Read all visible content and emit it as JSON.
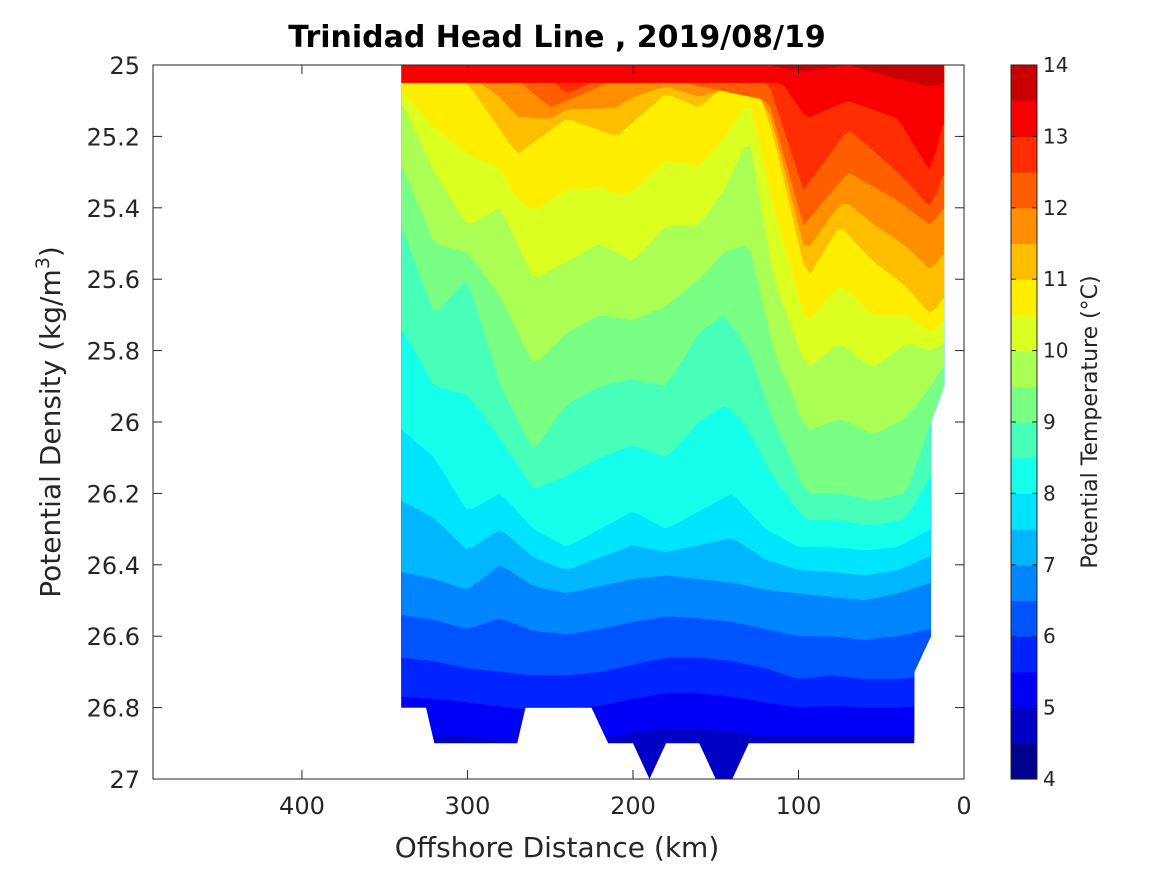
{
  "chart_data": {
    "type": "heatmap",
    "title": "Trinidad Head Line , 2019/08/19",
    "xlabel": "Offshore Distance (km)",
    "ylabel_main": "Potential Density (kg/m",
    "ylabel_sup": "3",
    "ylabel_close": ")",
    "colorbar_label": "Potential Temperature (°C)",
    "x_reversed": true,
    "xlim": [
      490,
      0
    ],
    "ylim": [
      25,
      27
    ],
    "y_reversed": true,
    "x_ticks": [
      "400",
      "300",
      "200",
      "100",
      "0"
    ],
    "x_tick_values": [
      400,
      300,
      200,
      100,
      0
    ],
    "y_ticks": [
      "25",
      "25.2",
      "25.4",
      "25.6",
      "25.8",
      "26",
      "26.2",
      "26.4",
      "26.6",
      "26.8",
      "27"
    ],
    "y_tick_values": [
      25,
      25.2,
      25.4,
      25.6,
      25.8,
      26,
      26.2,
      26.4,
      26.6,
      26.8,
      27
    ],
    "colorbar_ticks": [
      "14",
      "13",
      "12",
      "11",
      "10",
      "9",
      "8",
      "7",
      "6",
      "5",
      "4"
    ],
    "colorbar_tick_values": [
      14,
      13,
      12,
      11,
      10,
      9,
      8,
      7,
      6,
      5,
      4
    ],
    "color_levels": [
      4,
      4.5,
      5,
      5.5,
      6,
      6.5,
      7,
      7.5,
      8,
      8.5,
      9,
      9.5,
      10,
      10.5,
      11,
      11.5,
      12,
      12.5,
      13,
      13.5,
      14
    ],
    "colormap": [
      "#00008f",
      "#0000c4",
      "#0000f5",
      "#0024ff",
      "#0054ff",
      "#0085ff",
      "#00b6ff",
      "#00e4ff",
      "#15ffea",
      "#47ffb8",
      "#7aff85",
      "#abff54",
      "#dcff22",
      "#ffee00",
      "#ffbf00",
      "#ff8e00",
      "#ff5e00",
      "#ff2d00",
      "#f90000",
      "#c80000"
    ],
    "data_domain": "x from 340 km to 12 km offshore; sigma-theta from 25.0 to ~26.9 kg/m3",
    "temperature_level_surfaces": [
      {
        "level": 13.5,
        "x": [
          240,
          200,
          120,
          95,
          70,
          40,
          20,
          12
        ],
        "y": [
          25.0,
          25.0,
          25.0,
          25.02,
          25.0,
          25.04,
          25.06,
          25.05
        ]
      },
      {
        "level": 13.0,
        "x": [
          110,
          95,
          70,
          40,
          20,
          12
        ],
        "y": [
          25.05,
          25.15,
          25.1,
          25.15,
          25.3,
          25.15
        ]
      },
      {
        "level": 12.5,
        "x": [
          260,
          240,
          200,
          118,
          97,
          70,
          40,
          20,
          12
        ],
        "y": [
          25.0,
          25.08,
          25.0,
          25.05,
          25.35,
          25.18,
          25.3,
          25.4,
          25.3
        ]
      },
      {
        "level": 12.0,
        "x": [
          280,
          250,
          200,
          118,
          97,
          70,
          40,
          20,
          12
        ],
        "y": [
          25.0,
          25.12,
          25.02,
          25.1,
          25.45,
          25.3,
          25.38,
          25.45,
          25.4
        ]
      },
      {
        "level": 11.0,
        "x": [
          300,
          270,
          240,
          210,
          180,
          160,
          130,
          115,
          95,
          75,
          55,
          35,
          20,
          12
        ],
        "y": [
          25.05,
          25.25,
          25.15,
          25.2,
          25.08,
          25.12,
          25.0,
          25.2,
          25.6,
          25.45,
          25.55,
          25.62,
          25.7,
          25.65
        ]
      },
      {
        "level": 10.0,
        "x": [
          340,
          320,
          300,
          280,
          260,
          240,
          220,
          200,
          180,
          160,
          145,
          130,
          115,
          95,
          75,
          55,
          35,
          20,
          12
        ],
        "y": [
          25.1,
          25.3,
          25.45,
          25.4,
          25.6,
          25.55,
          25.5,
          25.55,
          25.45,
          25.45,
          25.35,
          25.2,
          25.6,
          25.85,
          25.78,
          25.85,
          25.78,
          25.8,
          25.78
        ]
      },
      {
        "level": 9.0,
        "x": [
          340,
          320,
          300,
          280,
          260,
          240,
          220,
          200,
          180,
          160,
          145,
          130,
          115,
          95,
          75,
          55,
          35,
          20,
          12
        ],
        "y": [
          25.45,
          25.7,
          25.6,
          25.9,
          26.08,
          25.95,
          25.9,
          25.88,
          25.9,
          25.75,
          25.7,
          25.8,
          26.0,
          26.2,
          26.2,
          26.22,
          26.2,
          26.0,
          25.9
        ]
      },
      {
        "level": 8.0,
        "x": [
          340,
          320,
          300,
          280,
          260,
          240,
          220,
          200,
          180,
          160,
          140,
          120,
          100,
          80,
          60,
          40,
          20
        ],
        "y": [
          26.02,
          26.1,
          26.25,
          26.2,
          26.3,
          26.35,
          26.3,
          26.25,
          26.3,
          26.25,
          26.2,
          26.3,
          26.35,
          26.35,
          26.36,
          26.35,
          26.3
        ]
      },
      {
        "level": 7.0,
        "x": [
          340,
          320,
          300,
          280,
          260,
          240,
          220,
          200,
          180,
          160,
          140,
          120,
          100,
          80,
          60,
          40,
          20
        ],
        "y": [
          26.42,
          26.44,
          26.47,
          26.4,
          26.46,
          26.48,
          26.46,
          26.44,
          26.43,
          26.44,
          26.45,
          26.47,
          26.48,
          26.49,
          26.5,
          26.48,
          26.45
        ]
      },
      {
        "level": 6.0,
        "x": [
          340,
          320,
          300,
          280,
          260,
          240,
          220,
          200,
          180,
          160,
          140,
          120,
          100,
          80,
          60,
          40,
          20
        ],
        "y": [
          26.66,
          26.67,
          26.69,
          26.7,
          26.71,
          26.71,
          26.7,
          26.68,
          26.66,
          26.66,
          26.67,
          26.69,
          26.72,
          26.71,
          26.72,
          26.72,
          26.71
        ]
      },
      {
        "level": 5.0,
        "x": [
          320,
          300,
          270,
          220,
          200,
          180,
          160,
          140,
          120,
          100,
          80,
          60,
          40,
          30
        ],
        "y": [
          26.88,
          26.88,
          26.9,
          26.89,
          26.87,
          26.86,
          26.86,
          26.87,
          26.88,
          26.88,
          26.88,
          26.88,
          26.88,
          26.88
        ]
      }
    ]
  }
}
